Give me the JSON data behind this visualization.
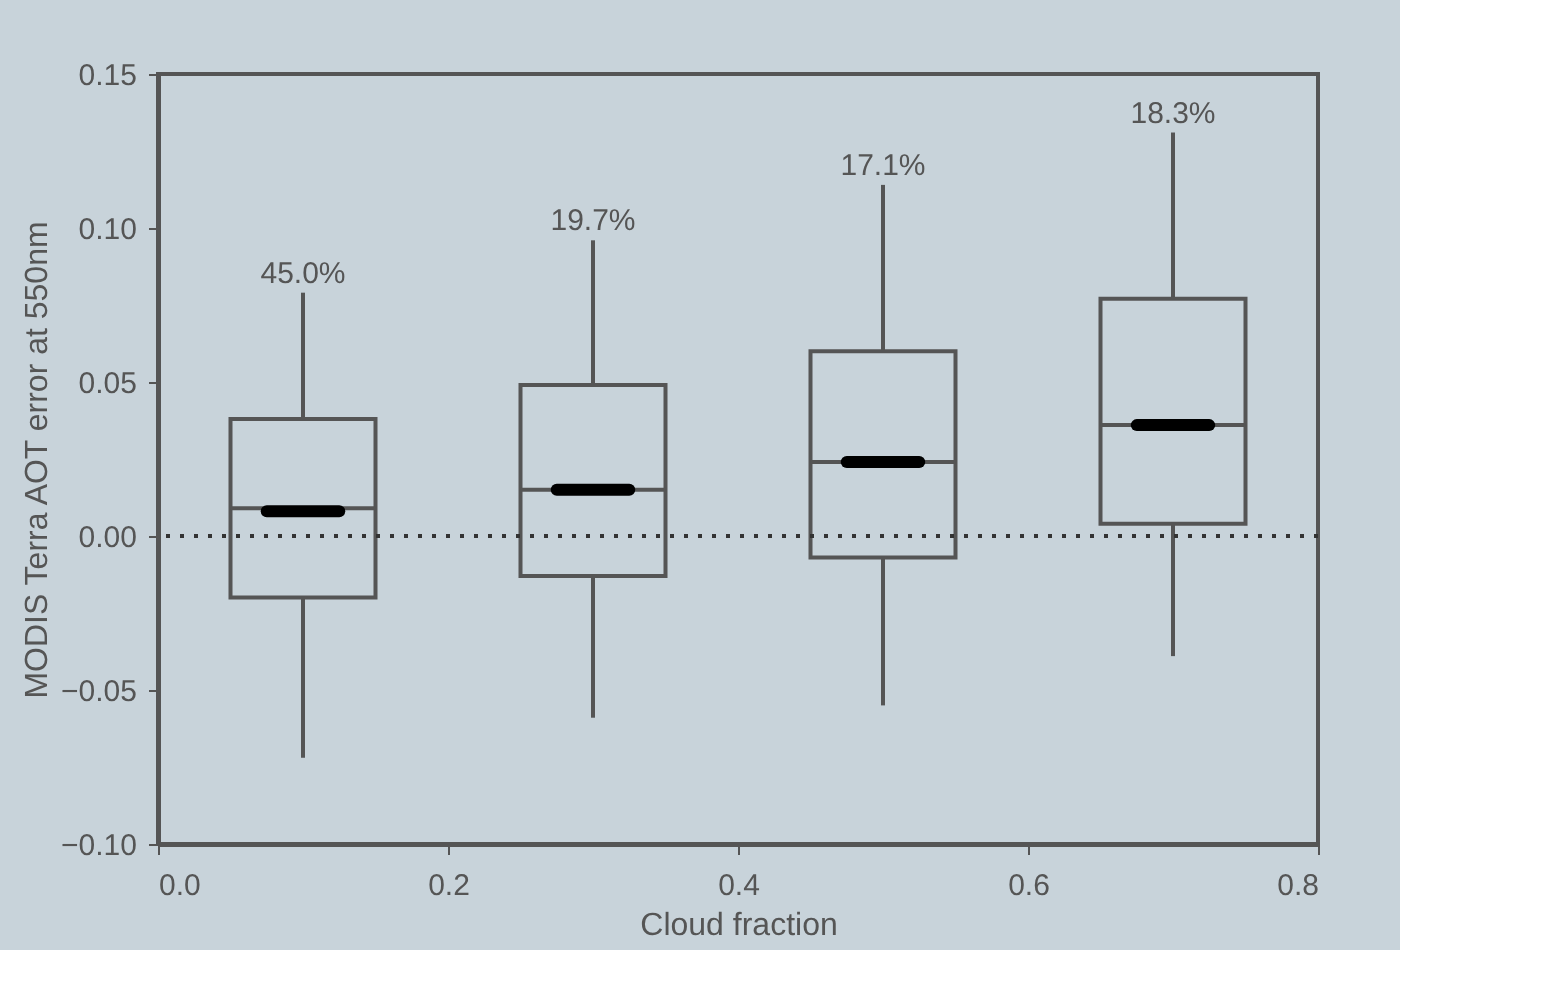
{
  "chart_data": {
    "type": "box",
    "xlabel": "Cloud fraction",
    "ylabel": "MODIS Terra AOT error at 550nm",
    "x": [
      0.1,
      0.3,
      0.5,
      0.7
    ],
    "boxes": [
      {
        "low": -0.072,
        "q1": -0.02,
        "median": 0.009,
        "q3": 0.038,
        "high": 0.079,
        "mean": 0.008
      },
      {
        "low": -0.059,
        "q1": -0.013,
        "median": 0.015,
        "q3": 0.049,
        "high": 0.096,
        "mean": 0.015
      },
      {
        "low": -0.055,
        "q1": -0.007,
        "median": 0.024,
        "q3": 0.06,
        "high": 0.114,
        "mean": 0.024
      },
      {
        "low": -0.039,
        "q1": 0.004,
        "median": 0.036,
        "q3": 0.077,
        "high": 0.131,
        "mean": 0.036
      }
    ],
    "annotations": [
      {
        "text": "45.0%",
        "x": 0.1,
        "y": 0.079
      },
      {
        "text": "19.7%",
        "x": 0.3,
        "y": 0.096
      },
      {
        "text": "17.1%",
        "x": 0.5,
        "y": 0.114
      },
      {
        "text": "18.3%",
        "x": 0.7,
        "y": 0.131
      }
    ],
    "xlim": [
      0,
      0.8
    ],
    "xticks": [
      {
        "value": 0,
        "label": "0.0"
      },
      {
        "value": 0.2,
        "label": "0.2"
      },
      {
        "value": 0.4,
        "label": "0.4"
      },
      {
        "value": 0.6,
        "label": "0.6"
      },
      {
        "value": 0.8,
        "label": "0.8"
      }
    ],
    "ylim": [
      -0.1,
      0.15
    ],
    "yticks": [
      {
        "value": -0.1,
        "label": "−0.10"
      },
      {
        "value": -0.05,
        "label": "−0.05"
      },
      {
        "value": 0,
        "label": "0.00"
      },
      {
        "value": 0.05,
        "label": "0.05"
      },
      {
        "value": 0.1,
        "label": "0.10"
      },
      {
        "value": 0.15,
        "label": "0.15"
      }
    ],
    "ref_lines": [
      {
        "axis": "y",
        "value": 0,
        "line_style": "dotted",
        "color": "#333333"
      }
    ],
    "grid": false
  }
}
